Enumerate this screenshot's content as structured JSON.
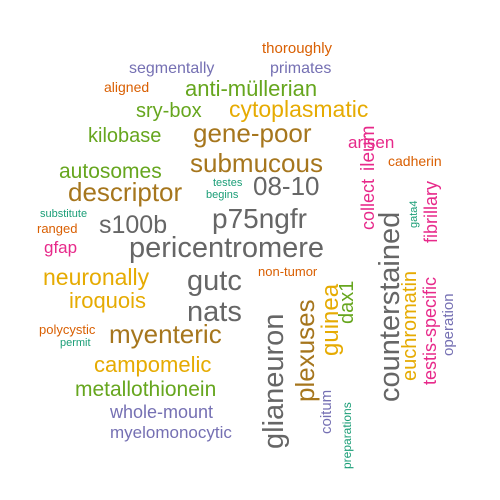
{
  "word_cloud": {
    "words": [
      {
        "text": "thoroughly",
        "color": "#d95f02"
      },
      {
        "text": "segmentally",
        "color": "#7570b3"
      },
      {
        "text": "primates",
        "color": "#7570b3"
      },
      {
        "text": "aligned",
        "color": "#d95f02"
      },
      {
        "text": "anti-müllerian",
        "color": "#66a61e"
      },
      {
        "text": "sry-box",
        "color": "#66a61e"
      },
      {
        "text": "cytoplasmatic",
        "color": "#e6ab02"
      },
      {
        "text": "kilobase",
        "color": "#66a61e"
      },
      {
        "text": "gene-poor",
        "color": "#a6761d"
      },
      {
        "text": "arisen",
        "color": "#e7298a"
      },
      {
        "text": "submucous",
        "color": "#a6761d"
      },
      {
        "text": "ileum",
        "color": "#e7298a"
      },
      {
        "text": "cadherin",
        "color": "#d95f02"
      },
      {
        "text": "autosomes",
        "color": "#66a61e"
      },
      {
        "text": "08-10",
        "color": "#666666"
      },
      {
        "text": "descriptor",
        "color": "#a6761d"
      },
      {
        "text": "testes",
        "color": "#1b9e77"
      },
      {
        "text": "begins",
        "color": "#1b9e77"
      },
      {
        "text": "substitute",
        "color": "#1b9e77"
      },
      {
        "text": "ranged",
        "color": "#d95f02"
      },
      {
        "text": "s100b",
        "color": "#666666"
      },
      {
        "text": "p75ngfr",
        "color": "#666666"
      },
      {
        "text": "collect",
        "color": "#e7298a"
      },
      {
        "text": "gata4",
        "color": "#1b9e77"
      },
      {
        "text": "fibrillary",
        "color": "#e7298a"
      },
      {
        "text": "gfap",
        "color": "#e7298a"
      },
      {
        "text": "pericentromere",
        "color": "#666666"
      },
      {
        "text": "counterstained",
        "color": "#666666"
      },
      {
        "text": "neuronally",
        "color": "#e6ab02"
      },
      {
        "text": "gutc",
        "color": "#666666"
      },
      {
        "text": "non-tumor",
        "color": "#d95f02"
      },
      {
        "text": "dax1",
        "color": "#66a61e"
      },
      {
        "text": "euchromatin",
        "color": "#e6ab02"
      },
      {
        "text": "testis-specific",
        "color": "#e7298a"
      },
      {
        "text": "iroquois",
        "color": "#e6ab02"
      },
      {
        "text": "nats",
        "color": "#666666"
      },
      {
        "text": "glianeuron",
        "color": "#666666"
      },
      {
        "text": "plexuses",
        "color": "#a6761d"
      },
      {
        "text": "guinea",
        "color": "#e6ab02"
      },
      {
        "text": "operation",
        "color": "#7570b3"
      },
      {
        "text": "polycystic",
        "color": "#d95f02"
      },
      {
        "text": "permit",
        "color": "#1b9e77"
      },
      {
        "text": "myenteric",
        "color": "#a6761d"
      },
      {
        "text": "campomelic",
        "color": "#e6ab02"
      },
      {
        "text": "metallothionein",
        "color": "#66a61e"
      },
      {
        "text": "whole-mount",
        "color": "#7570b3"
      },
      {
        "text": "coitum",
        "color": "#7570b3"
      },
      {
        "text": "myelomonocytic",
        "color": "#7570b3"
      },
      {
        "text": "preparations",
        "color": "#1b9e77"
      }
    ]
  }
}
